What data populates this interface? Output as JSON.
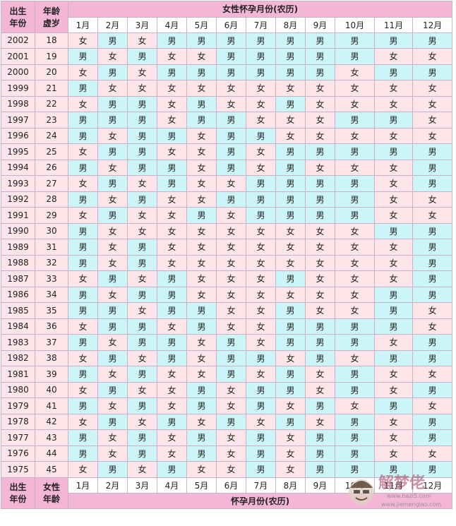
{
  "header": {
    "birth_year_line1": "出生",
    "birth_year_line2": "年份",
    "age_line1": "年龄",
    "age_line2": "虚岁",
    "top_title": "女性怀孕月份(农历)",
    "months": [
      "1月",
      "2月",
      "3月",
      "4月",
      "5月",
      "6月",
      "7月",
      "8月",
      "9月",
      "10月",
      "11月",
      "12月"
    ]
  },
  "footer": {
    "birth_year_line1": "出生",
    "birth_year_line2": "年份",
    "age_line1": "女性",
    "age_line2": "年龄",
    "bottom_title": "怀孕月份(农历)",
    "months": [
      "1月",
      "2月",
      "3月",
      "4月",
      "5月",
      "6月",
      "7月",
      "8月",
      "9月",
      "10月",
      "11月",
      "12月"
    ]
  },
  "watermark": {
    "brand": "解梦佬",
    "url1": "www.bazi5.com",
    "url2": "www.jiemenglao.com"
  },
  "colors": {
    "header_pink": "#f4b6d7",
    "boy_cyan": "#ccf5f8",
    "girl_pink": "#fde5ea",
    "border": "#c9b2c9"
  },
  "rows": [
    {
      "year": "2002",
      "age": "18",
      "cells": [
        "女",
        "男",
        "女",
        "男",
        "男",
        "男",
        "男",
        "男",
        "男",
        "男",
        "男",
        "男"
      ]
    },
    {
      "year": "2001",
      "age": "19",
      "cells": [
        "男",
        "女",
        "男",
        "女",
        "女",
        "男",
        "男",
        "男",
        "男",
        "男",
        "女",
        "女"
      ]
    },
    {
      "year": "2000",
      "age": "20",
      "cells": [
        "女",
        "男",
        "女",
        "男",
        "男",
        "男",
        "男",
        "男",
        "男",
        "女",
        "男",
        "男"
      ]
    },
    {
      "year": "1999",
      "age": "21",
      "cells": [
        "男",
        "女",
        "女",
        "女",
        "女",
        "女",
        "女",
        "女",
        "女",
        "女",
        "女",
        "女"
      ]
    },
    {
      "year": "1998",
      "age": "22",
      "cells": [
        "女",
        "男",
        "男",
        "女",
        "男",
        "女",
        "女",
        "男",
        "女",
        "女",
        "女",
        "女"
      ]
    },
    {
      "year": "1997",
      "age": "23",
      "cells": [
        "男",
        "男",
        "男",
        "女",
        "男",
        "男",
        "女",
        "女",
        "女",
        "男",
        "男",
        "女"
      ]
    },
    {
      "year": "1996",
      "age": "24",
      "cells": [
        "男",
        "女",
        "男",
        "男",
        "女",
        "男",
        "男",
        "女",
        "女",
        "女",
        "女",
        "女"
      ]
    },
    {
      "year": "1995",
      "age": "25",
      "cells": [
        "女",
        "男",
        "男",
        "女",
        "女",
        "男",
        "女",
        "男",
        "男",
        "男",
        "男",
        "男"
      ]
    },
    {
      "year": "1994",
      "age": "26",
      "cells": [
        "男",
        "女",
        "男",
        "男",
        "女",
        "男",
        "女",
        "男",
        "女",
        "女",
        "女",
        "男"
      ]
    },
    {
      "year": "1993",
      "age": "27",
      "cells": [
        "女",
        "男",
        "女",
        "男",
        "女",
        "女",
        "男",
        "男",
        "男",
        "男",
        "女",
        "男"
      ]
    },
    {
      "year": "1992",
      "age": "28",
      "cells": [
        "男",
        "女",
        "男",
        "女",
        "女",
        "男",
        "男",
        "男",
        "男",
        "男",
        "女",
        "女"
      ]
    },
    {
      "year": "1991",
      "age": "29",
      "cells": [
        "女",
        "男",
        "女",
        "女",
        "男",
        "女",
        "男",
        "男",
        "男",
        "男",
        "女",
        "女"
      ]
    },
    {
      "year": "1990",
      "age": "30",
      "cells": [
        "男",
        "女",
        "女",
        "女",
        "女",
        "女",
        "女",
        "女",
        "女",
        "女",
        "男",
        "男"
      ]
    },
    {
      "year": "1989",
      "age": "31",
      "cells": [
        "男",
        "女",
        "男",
        "女",
        "女",
        "女",
        "女",
        "女",
        "女",
        "女",
        "女",
        "男"
      ]
    },
    {
      "year": "1988",
      "age": "32",
      "cells": [
        "男",
        "女",
        "男",
        "女",
        "女",
        "女",
        "女",
        "女",
        "女",
        "女",
        "女",
        "男"
      ]
    },
    {
      "year": "1987",
      "age": "33",
      "cells": [
        "女",
        "男",
        "女",
        "男",
        "女",
        "女",
        "女",
        "男",
        "女",
        "女",
        "女",
        "男"
      ]
    },
    {
      "year": "1986",
      "age": "34",
      "cells": [
        "男",
        "女",
        "男",
        "男",
        "女",
        "女",
        "女",
        "女",
        "女",
        "女",
        "男",
        "男"
      ]
    },
    {
      "year": "1985",
      "age": "35",
      "cells": [
        "男",
        "男",
        "女",
        "男",
        "男",
        "女",
        "女",
        "男",
        "女",
        "女",
        "男",
        "女"
      ]
    },
    {
      "year": "1984",
      "age": "36",
      "cells": [
        "女",
        "男",
        "男",
        "女",
        "男",
        "女",
        "女",
        "男",
        "男",
        "男",
        "男",
        "女"
      ]
    },
    {
      "year": "1983",
      "age": "37",
      "cells": [
        "男",
        "女",
        "男",
        "男",
        "女",
        "男",
        "女",
        "男",
        "男",
        "男",
        "女",
        "男"
      ]
    },
    {
      "year": "1982",
      "age": "38",
      "cells": [
        "女",
        "男",
        "女",
        "男",
        "女",
        "男",
        "男",
        "女",
        "男",
        "女",
        "男",
        "男"
      ]
    },
    {
      "year": "1981",
      "age": "39",
      "cells": [
        "男",
        "女",
        "男",
        "女",
        "女",
        "男",
        "女",
        "男",
        "女",
        "男",
        "女",
        "女"
      ]
    },
    {
      "year": "1980",
      "age": "40",
      "cells": [
        "女",
        "男",
        "女",
        "女",
        "男",
        "女",
        "男",
        "男",
        "女",
        "男",
        "女",
        "男"
      ]
    },
    {
      "year": "1979",
      "age": "41",
      "cells": [
        "男",
        "女",
        "男",
        "女",
        "男",
        "女",
        "男",
        "女",
        "男",
        "女",
        "男",
        "女"
      ]
    },
    {
      "year": "1978",
      "age": "42",
      "cells": [
        "女",
        "男",
        "女",
        "男",
        "女",
        "男",
        "女",
        "男",
        "女",
        "男",
        "女",
        "男"
      ]
    },
    {
      "year": "1977",
      "age": "43",
      "cells": [
        "男",
        "女",
        "男",
        "女",
        "男",
        "女",
        "男",
        "女",
        "男",
        "男",
        "女",
        "男"
      ]
    },
    {
      "year": "1976",
      "age": "44",
      "cells": [
        "男",
        "女",
        "男",
        "女",
        "男",
        "女",
        "男",
        "女",
        "男",
        "男",
        "女",
        "女"
      ]
    },
    {
      "year": "1975",
      "age": "45",
      "cells": [
        "女",
        "男",
        "女",
        "男",
        "女",
        "女",
        "男",
        "女",
        "男",
        "男",
        "男",
        "男"
      ]
    }
  ]
}
